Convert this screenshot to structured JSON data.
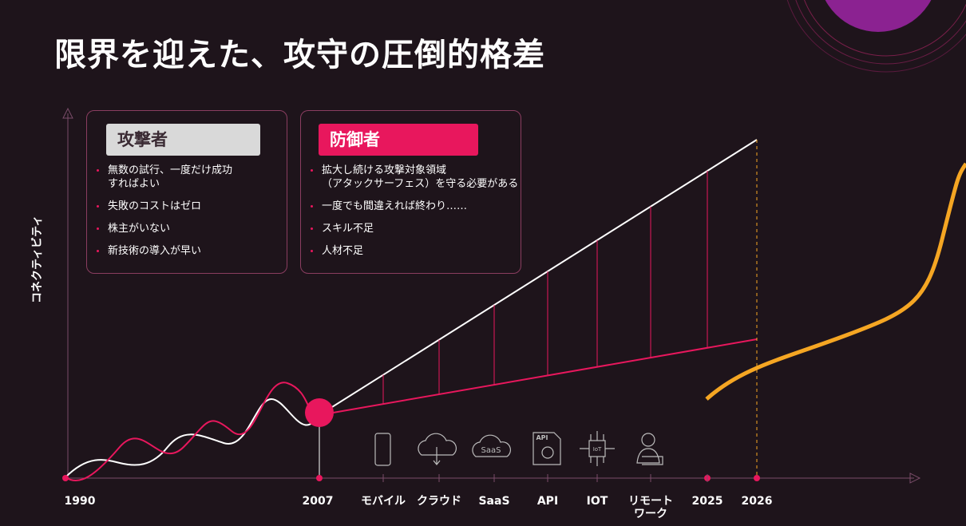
{
  "title": "限界を迎えた、攻守の圧倒的格差",
  "y_axis_label": "コネクティビティ",
  "attacker": {
    "heading": "攻撃者",
    "items": [
      "無数の試行、一度だけ成功\nすればよい",
      "失敗のコストはゼロ",
      "株主がいない",
      "新技術の導入が早い"
    ]
  },
  "defender": {
    "heading": "防御者",
    "items": [
      "拡大し続ける攻撃対象領域\n（アタックサーフェス）を守る必要がある",
      "一度でも間違えれば終わり……",
      "スキル不足",
      "人材不足"
    ]
  },
  "timeline": {
    "labels": [
      "1990",
      "2007",
      "モバイル",
      "クラウド",
      "SaaS",
      "API",
      "IOT",
      "リモート\nワーク",
      "2025",
      "2026"
    ]
  },
  "icon_labels": {
    "saas": "SaaS",
    "api": "API",
    "iot": "IoT"
  }
}
